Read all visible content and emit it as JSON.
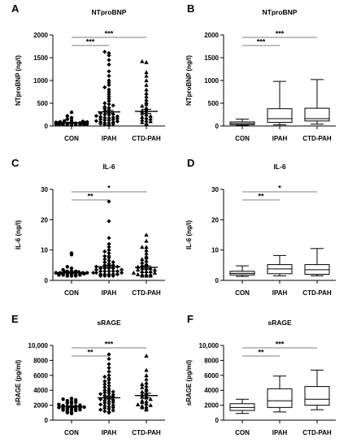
{
  "chart_data": [
    {
      "panel": "A",
      "type": "scatter",
      "title": "NTproBNP",
      "ylabel": "NTproBNP (ng/l)",
      "categories": [
        "CON",
        "IPAH",
        "CTD-PAH"
      ],
      "ylim": [
        0,
        2000
      ],
      "yticks": [
        0,
        500,
        1000,
        1500,
        2000
      ],
      "ytick_labels": [
        "0",
        "500",
        "1000",
        "1500",
        "2000"
      ],
      "marker": [
        "circle",
        "diamond",
        "triangle"
      ],
      "means": [
        70,
        310,
        320
      ],
      "sems": [
        12,
        30,
        45
      ],
      "points": [
        [
          20,
          25,
          30,
          30,
          35,
          40,
          40,
          45,
          45,
          50,
          50,
          55,
          55,
          60,
          60,
          65,
          70,
          75,
          80,
          85,
          90,
          100,
          110,
          120,
          150,
          180,
          220,
          300
        ],
        [
          20,
          30,
          40,
          50,
          60,
          70,
          80,
          90,
          100,
          110,
          120,
          130,
          140,
          150,
          160,
          170,
          180,
          190,
          200,
          210,
          220,
          240,
          250,
          260,
          280,
          300,
          320,
          350,
          380,
          400,
          420,
          450,
          480,
          500,
          550,
          600,
          650,
          700,
          750,
          800,
          850,
          900,
          950,
          1000,
          1100,
          1200,
          1350,
          1450,
          1550,
          1600,
          1630
        ],
        [
          40,
          60,
          80,
          100,
          120,
          140,
          160,
          180,
          200,
          220,
          250,
          280,
          300,
          330,
          360,
          400,
          440,
          480,
          520,
          580,
          650,
          720,
          800,
          900,
          1000,
          1100,
          1180,
          1400,
          1420
        ]
      ],
      "significance": [
        {
          "from": "CON",
          "to": "IPAH",
          "label": "***"
        },
        {
          "from": "CON",
          "to": "CTD-PAH",
          "label": "***"
        }
      ]
    },
    {
      "panel": "B",
      "type": "box",
      "title": "NTproBNP",
      "ylabel": "NTproBNP (ng/l)",
      "categories": [
        "CON",
        "IPAH",
        "CTD-PAH"
      ],
      "ylim": [
        0,
        2000
      ],
      "yticks": [
        0,
        500,
        1000,
        1500,
        2000
      ],
      "ytick_labels": [
        "0",
        "500",
        "1000",
        "1500",
        "2000"
      ],
      "boxes": [
        {
          "min": 15,
          "q1": 30,
          "median": 55,
          "q3": 90,
          "max": 150
        },
        {
          "min": 25,
          "q1": 80,
          "median": 160,
          "q3": 380,
          "max": 980
        },
        {
          "min": 40,
          "q1": 110,
          "median": 160,
          "q3": 390,
          "max": 1020
        }
      ],
      "significance": [
        {
          "from": "CON",
          "to": "IPAH",
          "label": "***"
        },
        {
          "from": "CON",
          "to": "CTD-PAH",
          "label": "***"
        }
      ]
    },
    {
      "panel": "C",
      "type": "scatter",
      "title": "IL-6",
      "ylabel": "IL-6 (ng/l)",
      "categories": [
        "CON",
        "IPAH",
        "CTD-PAH"
      ],
      "ylim": [
        0,
        30
      ],
      "yticks": [
        0,
        10,
        20,
        30
      ],
      "ytick_labels": [
        "0",
        "10",
        "20",
        "30"
      ],
      "marker": [
        "circle",
        "diamond",
        "triangle"
      ],
      "means": [
        2.6,
        4.5,
        4.3
      ],
      "sems": [
        0.3,
        0.5,
        0.5
      ],
      "points": [
        [
          1.5,
          1.5,
          1.5,
          1.8,
          1.8,
          1.8,
          2,
          2,
          2,
          2,
          2,
          2.2,
          2.2,
          2.5,
          2.5,
          2.5,
          2.5,
          2.8,
          2.8,
          3,
          3,
          3,
          3.5,
          4,
          4.5,
          8.5,
          9
        ],
        [
          1.5,
          1.5,
          1.5,
          1.5,
          2,
          2,
          2,
          2,
          2,
          2.5,
          2.5,
          2.5,
          3,
          3,
          3,
          3,
          3,
          3.5,
          3.5,
          4,
          4,
          4,
          4,
          4.5,
          4.5,
          5,
          5,
          5,
          5.5,
          6,
          6,
          6.5,
          7,
          7.5,
          8,
          8,
          9,
          9.5,
          10,
          11,
          12,
          14,
          19.5,
          26
        ],
        [
          1.5,
          1.5,
          1.5,
          2,
          2,
          2,
          2,
          2.5,
          2.5,
          3,
          3,
          3,
          3.5,
          3.5,
          4,
          4,
          4,
          4.5,
          5,
          5,
          5.5,
          6,
          6.5,
          7,
          7.5,
          8,
          9,
          10,
          11,
          11,
          13,
          15
        ]
      ],
      "significance": [
        {
          "from": "CON",
          "to": "IPAH",
          "label": "**"
        },
        {
          "from": "CON",
          "to": "CTD-PAH",
          "label": "*"
        }
      ]
    },
    {
      "panel": "D",
      "type": "box",
      "title": "IL-6",
      "ylabel": "IL-6 (ng/l)",
      "categories": [
        "CON",
        "IPAH",
        "CTD-PAH"
      ],
      "ylim": [
        0,
        30
      ],
      "yticks": [
        0,
        10,
        20,
        30
      ],
      "ytick_labels": [
        "0",
        "10",
        "20",
        "30"
      ],
      "boxes": [
        {
          "min": 1.3,
          "q1": 1.8,
          "median": 2.3,
          "q3": 3.0,
          "max": 4.8
        },
        {
          "min": 1.5,
          "q1": 2.2,
          "median": 3.8,
          "q3": 5.2,
          "max": 8.2
        },
        {
          "min": 1.5,
          "q1": 2.0,
          "median": 3.5,
          "q3": 5.2,
          "max": 10.5
        }
      ],
      "significance": [
        {
          "from": "CON",
          "to": "IPAH",
          "label": "**"
        },
        {
          "from": "CON",
          "to": "CTD-PAH",
          "label": "*"
        }
      ]
    },
    {
      "panel": "E",
      "type": "scatter",
      "title": "sRAGE",
      "ylabel": "sRAGE (pg/ml)",
      "categories": [
        "CON",
        "IPAH",
        "CTD-PAH"
      ],
      "ylim": [
        0,
        10000
      ],
      "yticks": [
        0,
        2000,
        4000,
        6000,
        8000,
        10000
      ],
      "ytick_labels": [
        "0",
        "2000",
        "4000",
        "6000",
        "8000",
        "10,000"
      ],
      "marker": [
        "circle",
        "diamond",
        "triangle"
      ],
      "means": [
        1800,
        3000,
        3300
      ],
      "sems": [
        100,
        180,
        300
      ],
      "points": [
        [
          900,
          1000,
          1100,
          1200,
          1300,
          1350,
          1400,
          1450,
          1500,
          1550,
          1600,
          1650,
          1700,
          1750,
          1800,
          1850,
          1900,
          1950,
          2000,
          2100,
          2200,
          2300,
          2400,
          2500,
          2600,
          2700,
          2800,
          2900
        ],
        [
          1000,
          1100,
          1200,
          1300,
          1400,
          1500,
          1600,
          1700,
          1800,
          1900,
          2000,
          2100,
          2200,
          2300,
          2400,
          2500,
          2600,
          2700,
          2800,
          2900,
          3000,
          3100,
          3200,
          3300,
          3400,
          3500,
          3600,
          3700,
          3800,
          3900,
          4000,
          4200,
          4400,
          4600,
          4800,
          5000,
          5200,
          5400,
          5600,
          5800,
          6000,
          6500,
          7000,
          7500,
          8200,
          8800
        ],
        [
          1400,
          1500,
          1700,
          1800,
          1900,
          2000,
          2100,
          2200,
          2400,
          2500,
          2600,
          2800,
          3000,
          3100,
          3200,
          3400,
          3600,
          3800,
          4000,
          4200,
          4400,
          4600,
          4800,
          5000,
          5500,
          6000,
          6700,
          8600
        ]
      ],
      "significance": [
        {
          "from": "CON",
          "to": "IPAH",
          "label": "**"
        },
        {
          "from": "CON",
          "to": "CTD-PAH",
          "label": "***"
        }
      ]
    },
    {
      "panel": "F",
      "type": "box",
      "title": "sRAGE",
      "ylabel": "sRAGE (pg/ml)",
      "categories": [
        "CON",
        "IPAH",
        "CTD-PAH"
      ],
      "ylim": [
        0,
        10000
      ],
      "yticks": [
        0,
        2000,
        4000,
        6000,
        8000,
        10000
      ],
      "ytick_labels": [
        "0",
        "2000",
        "4000",
        "6000",
        "8000",
        "10,000"
      ],
      "boxes": [
        {
          "min": 900,
          "q1": 1300,
          "median": 1700,
          "q3": 2200,
          "max": 2800
        },
        {
          "min": 1100,
          "q1": 1700,
          "median": 2600,
          "q3": 4200,
          "max": 5900
        },
        {
          "min": 1400,
          "q1": 2000,
          "median": 2800,
          "q3": 4500,
          "max": 6700
        }
      ],
      "significance": [
        {
          "from": "CON",
          "to": "IPAH",
          "label": "**"
        },
        {
          "from": "CON",
          "to": "CTD-PAH",
          "label": "***"
        }
      ]
    }
  ]
}
